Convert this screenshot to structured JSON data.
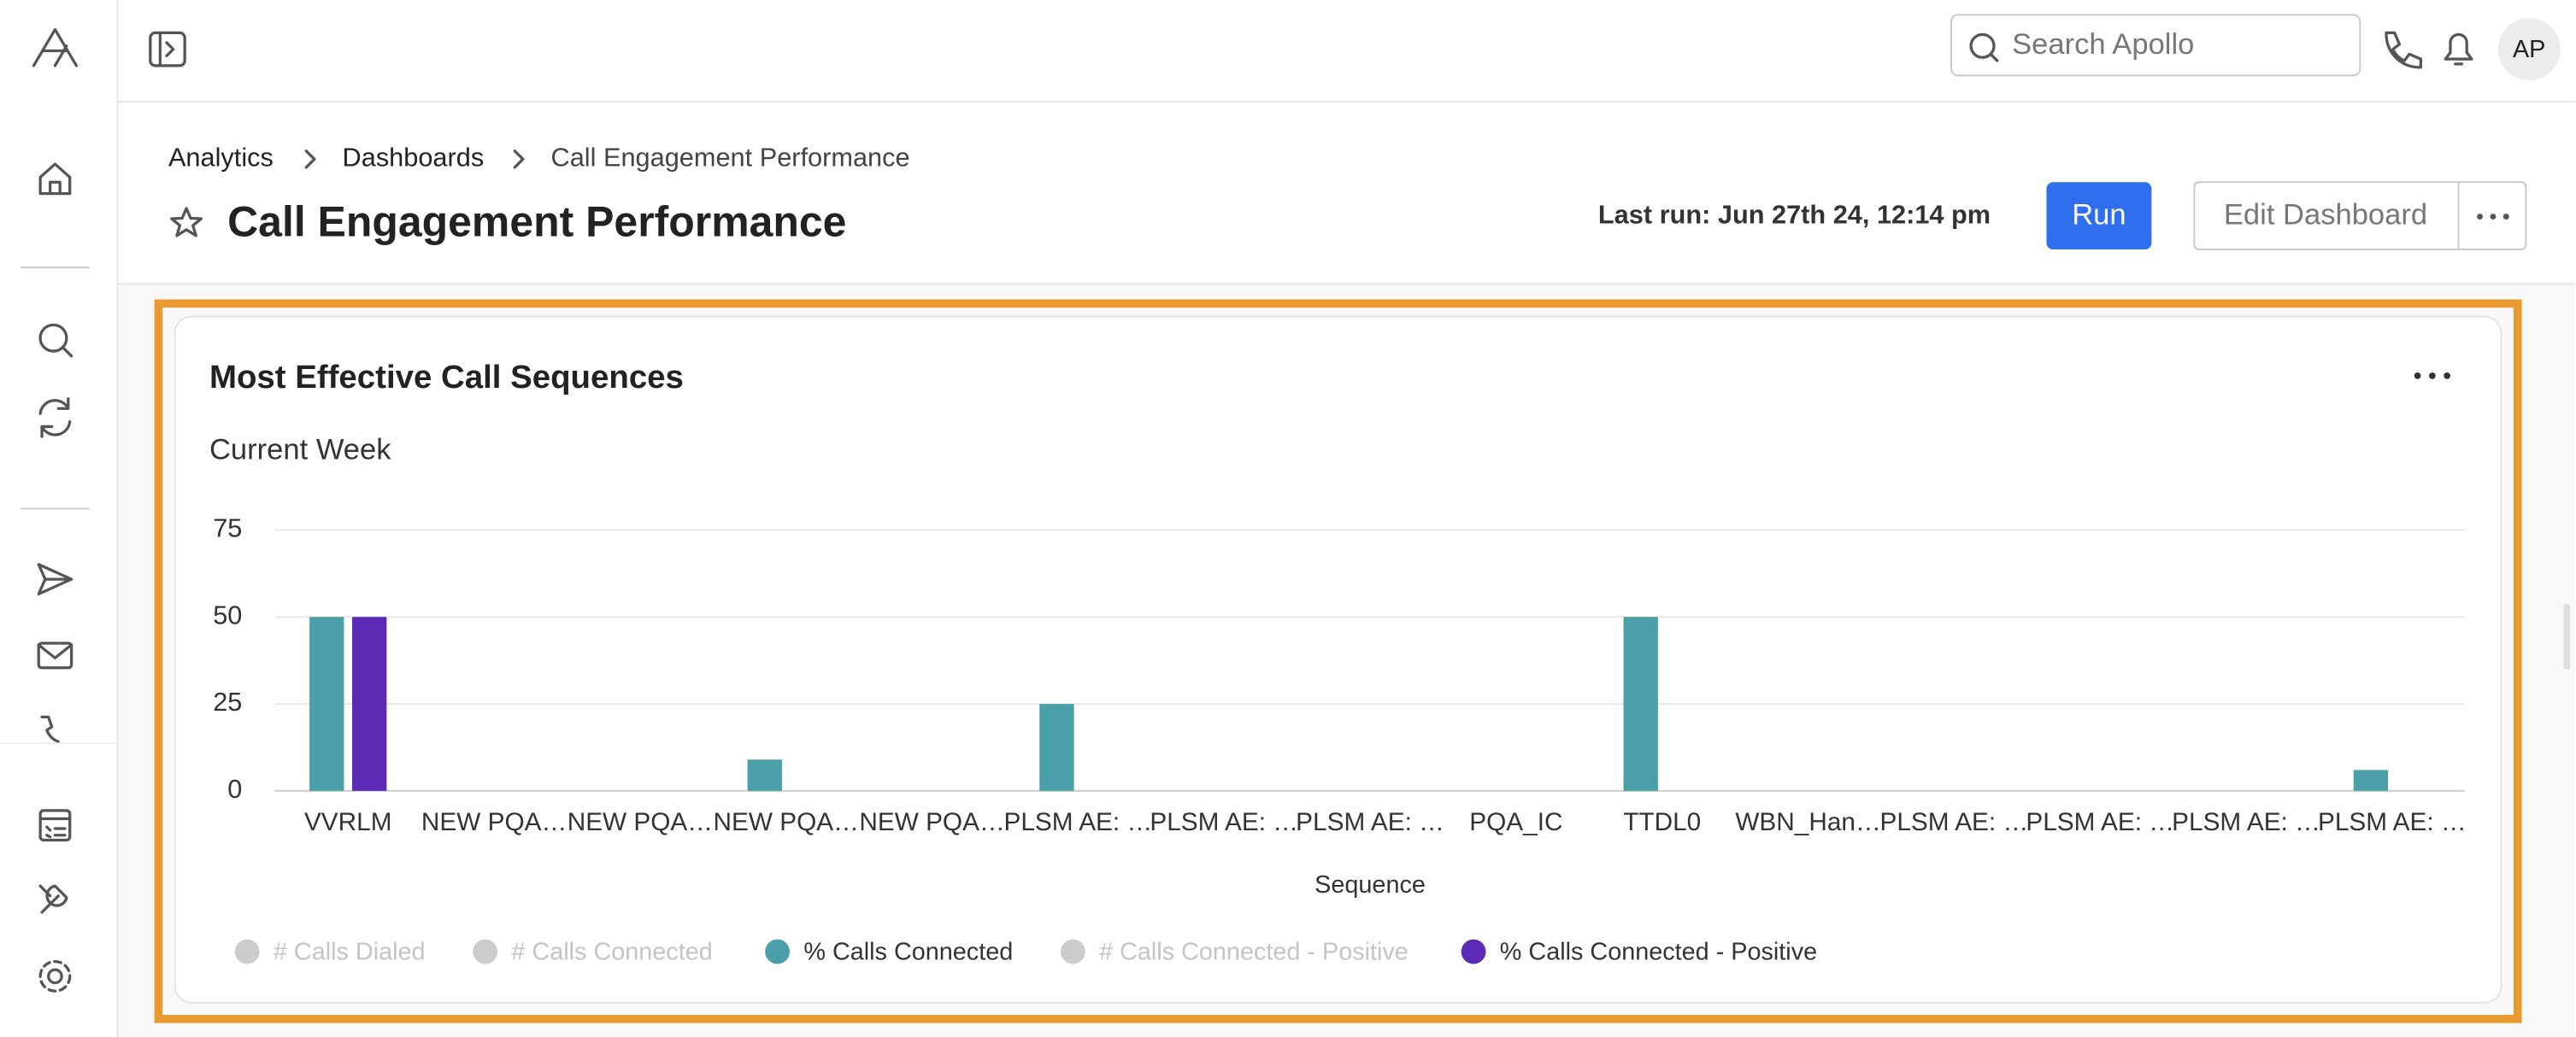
{
  "header": {
    "search_placeholder": "Search Apollo",
    "avatar": "AP"
  },
  "breadcrumbs": [
    "Analytics",
    "Dashboards",
    "Call Engagement Performance"
  ],
  "page_title": "Call Engagement Performance",
  "last_run": "Last run: Jun 27th 24, 12:14 pm",
  "buttons": {
    "run": "Run",
    "edit": "Edit Dashboard"
  },
  "chart_data": {
    "type": "bar",
    "title": "Most Effective Call Sequences",
    "subtitle": "Current Week",
    "xlabel": "Sequence",
    "categories": [
      "VVRLM",
      "NEW PQA…",
      "NEW PQA…",
      "NEW PQA…",
      "NEW PQA…",
      "PLSM AE: …",
      "PLSM AE: …",
      "PLSM AE: …",
      "PQA_IC",
      "TTDL0",
      "WBN_Han…",
      "PLSM AE: …",
      "PLSM AE: …",
      "PLSM AE: …",
      "PLSM AE: …"
    ],
    "series": [
      {
        "name": "# Calls Dialed",
        "color": "#cccccc",
        "visible": false,
        "values": [
          null,
          null,
          null,
          null,
          null,
          null,
          null,
          null,
          null,
          null,
          null,
          null,
          null,
          null,
          null
        ]
      },
      {
        "name": "# Calls Connected",
        "color": "#cccccc",
        "visible": false,
        "values": [
          null,
          null,
          null,
          null,
          null,
          null,
          null,
          null,
          null,
          null,
          null,
          null,
          null,
          null,
          null
        ]
      },
      {
        "name": "% Calls Connected",
        "color": "#4a9fa8",
        "visible": true,
        "values": [
          50,
          0,
          0,
          9,
          0,
          25,
          0,
          0,
          0,
          50,
          0,
          0,
          0,
          0,
          6
        ]
      },
      {
        "name": "# Calls Connected - Positive",
        "color": "#cccccc",
        "visible": false,
        "values": [
          null,
          null,
          null,
          null,
          null,
          null,
          null,
          null,
          null,
          null,
          null,
          null,
          null,
          null,
          null
        ]
      },
      {
        "name": "% Calls Connected - Positive",
        "color": "#5b2bb5",
        "visible": true,
        "values": [
          50,
          0,
          0,
          0,
          0,
          0,
          0,
          0,
          0,
          0,
          0,
          0,
          0,
          0,
          0
        ]
      }
    ],
    "ylim": [
      0,
      75
    ],
    "yticks": [
      0,
      25,
      50,
      75
    ],
    "grid": true
  }
}
